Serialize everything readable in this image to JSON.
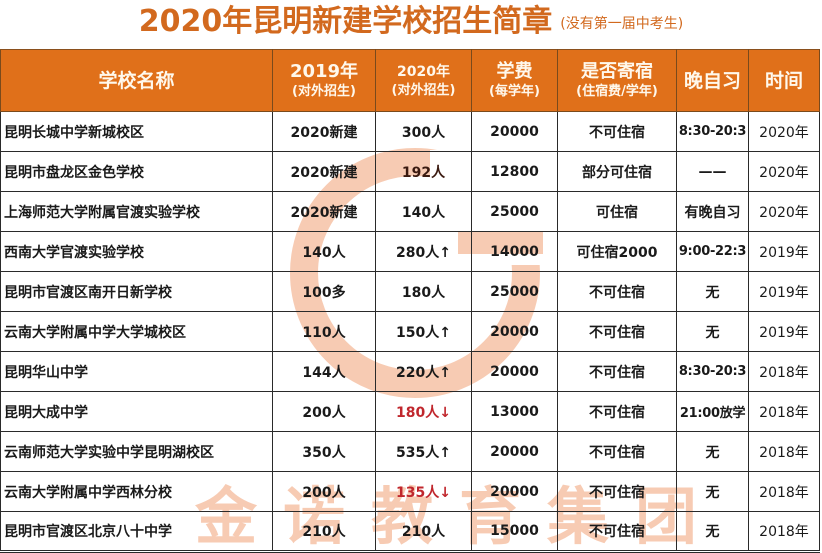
{
  "header": {
    "title": "2020年昆明新建学校招生简章",
    "subtitle": "(没有第一届中考生)"
  },
  "watermark": {
    "logo": "ring-logo",
    "text": "金诺教育集团",
    "color": "#f6c2a6"
  },
  "colors": {
    "header_bg": "#e0701a",
    "title": "#d2691e",
    "decrease_red": "#c0272d"
  },
  "table": {
    "columns": [
      {
        "main": "学校名称",
        "sub": ""
      },
      {
        "main": "2019年",
        "sub": "(对外招生)"
      },
      {
        "main": "2020年",
        "sub": "(对外招生)"
      },
      {
        "main": "学费",
        "sub": "(每学年)"
      },
      {
        "main": "是否寄宿",
        "sub": "(住宿费/学年)"
      },
      {
        "main": "晚自习",
        "sub": ""
      },
      {
        "main": "时间",
        "sub": ""
      }
    ],
    "rows": [
      {
        "name": "昆明长城中学新城校区",
        "y2019": "2020新建",
        "y2020": "300人",
        "y2020_style": "",
        "fee": "20000",
        "boarding": "不可住宿",
        "evening": "8:30-20:3",
        "year": "2020年"
      },
      {
        "name": "昆明市盘龙区金色学校",
        "y2019": "2020新建",
        "y2020": "192人",
        "y2020_style": "dark",
        "fee": "12800",
        "boarding": "部分可住宿",
        "evening": "——",
        "year": "2020年"
      },
      {
        "name": "上海师范大学附属官渡实验学校",
        "y2019": "2020新建",
        "y2020": "140人",
        "y2020_style": "",
        "fee": "25000",
        "boarding": "可住宿",
        "evening": "有晚自习",
        "year": "2020年"
      },
      {
        "name": "西南大学官渡实验学校",
        "y2019": "140人",
        "y2020": "280人↑",
        "y2020_style": "",
        "fee": "14000",
        "boarding": "可住宿2000",
        "evening": "9:00-22:3",
        "year": "2019年"
      },
      {
        "name": "昆明市官渡区南开日新学校",
        "y2019": "100多",
        "y2020": "180人",
        "y2020_style": "",
        "fee": "25000",
        "boarding": "不可住宿",
        "evening": "无",
        "year": "2019年"
      },
      {
        "name": "云南大学附属中学大学城校区",
        "y2019": "110人",
        "y2020": "150人↑",
        "y2020_style": "",
        "fee": "20000",
        "boarding": "不可住宿",
        "evening": "无",
        "year": "2019年"
      },
      {
        "name": "昆明华山中学",
        "y2019": "144人",
        "y2020": "220人↑",
        "y2020_style": "",
        "fee": "20000",
        "boarding": "不可住宿",
        "evening": "8:30-20:3",
        "year": "2018年"
      },
      {
        "name": "昆明大成中学",
        "y2019": "200人",
        "y2020": "180人↓",
        "y2020_style": "red",
        "fee": "13000",
        "boarding": "不可住宿",
        "evening": "21:00放学",
        "year": "2018年"
      },
      {
        "name": "云南师范大学实验中学昆明湖校区",
        "y2019": "350人",
        "y2020": "535人↑",
        "y2020_style": "",
        "fee": "20000",
        "boarding": "不可住宿",
        "evening": "无",
        "year": "2018年"
      },
      {
        "name": "云南大学附属中学西林分校",
        "y2019": "200人",
        "y2020": "135人↓",
        "y2020_style": "red",
        "fee": "20000",
        "boarding": "不可住宿",
        "evening": "无",
        "year": "2018年"
      },
      {
        "name": "昆明市官渡区北京八十中学",
        "y2019": "210人",
        "y2020": "210人",
        "y2020_style": "",
        "fee": "15000",
        "boarding": "不可住宿",
        "evening": "无",
        "year": "2018年"
      }
    ]
  }
}
